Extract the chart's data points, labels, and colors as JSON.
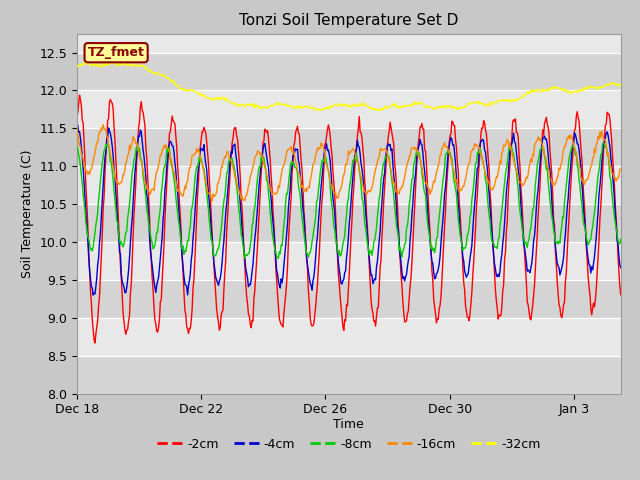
{
  "title": "Tonzi Soil Temperature Set D",
  "xlabel": "Time",
  "ylabel": "Soil Temperature (C)",
  "ylim": [
    8.0,
    12.75
  ],
  "yticks": [
    8.0,
    8.5,
    9.0,
    9.5,
    10.0,
    10.5,
    11.0,
    11.5,
    12.0,
    12.5
  ],
  "legend_label": "TZ_fmet",
  "legend_bg": "#ffff99",
  "legend_border": "#8B0000",
  "colors": {
    "-2cm": "#ff0000",
    "-4cm": "#0000cc",
    "-8cm": "#00cc00",
    "-16cm": "#ff8800",
    "-32cm": "#ffff00"
  },
  "xtick_labels": [
    "Dec 18",
    "Dec 22",
    "Dec 26",
    "Dec 30",
    "Jan 3"
  ],
  "xtick_positions": [
    0,
    4,
    8,
    12,
    16
  ],
  "xlim": [
    0,
    17.5
  ],
  "n_points": 600,
  "total_days": 17.5
}
